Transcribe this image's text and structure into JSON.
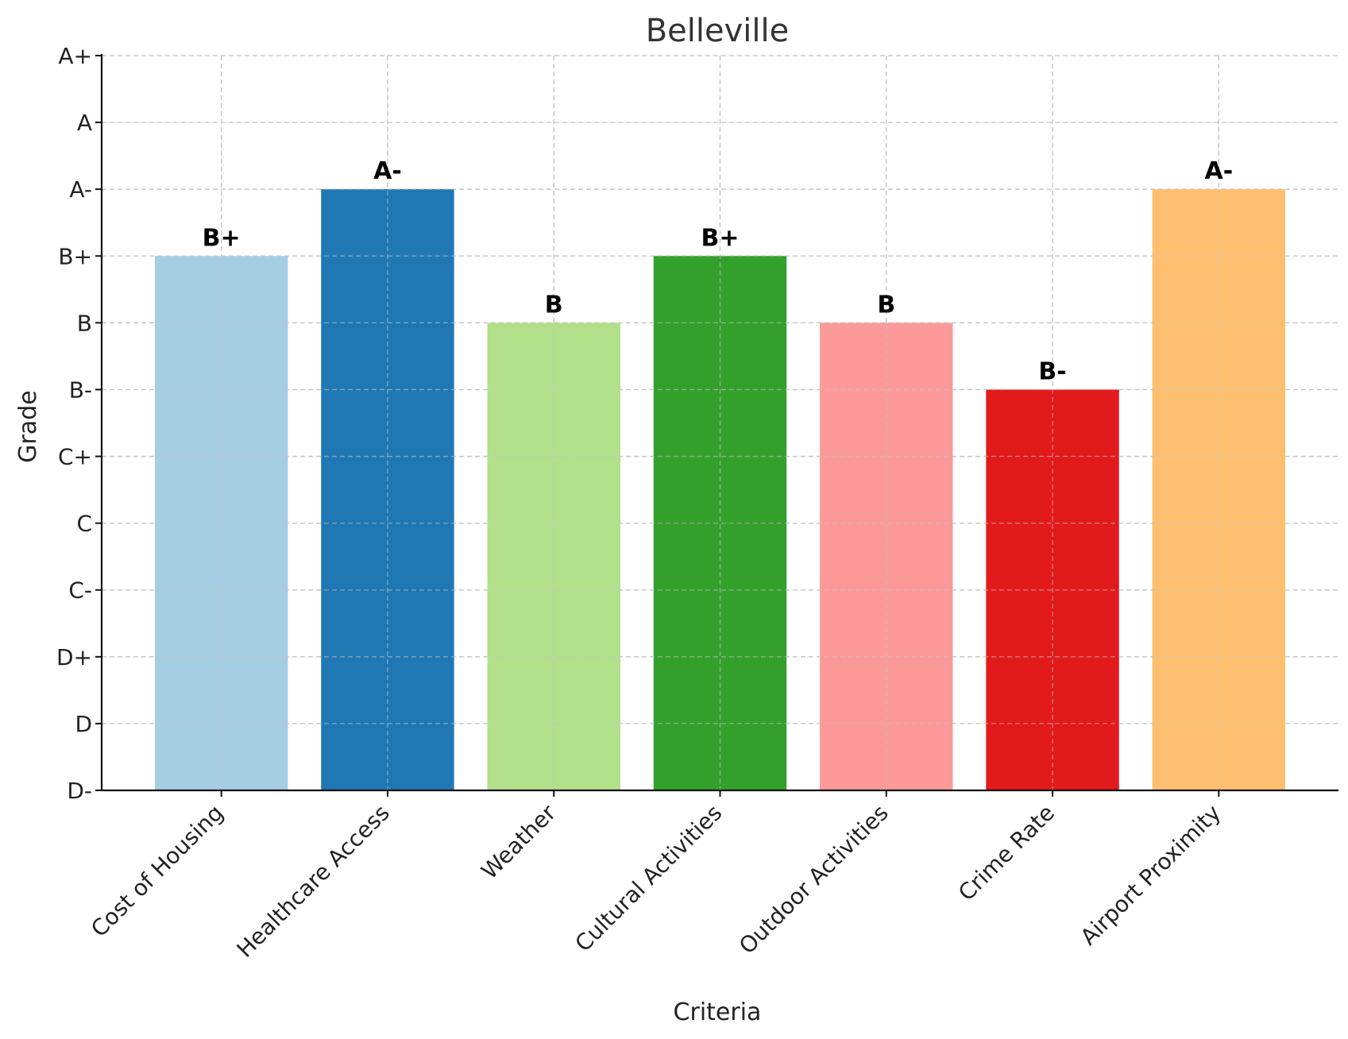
{
  "chart_data": {
    "type": "bar",
    "title": "Belleville",
    "xlabel": "Criteria",
    "ylabel": "Grade",
    "grade_scale": [
      "D-",
      "D",
      "D+",
      "C-",
      "C",
      "C+",
      "B-",
      "B",
      "B+",
      "A-",
      "A",
      "A+"
    ],
    "ylim": [
      0,
      11
    ],
    "grid": true,
    "categories": [
      "Cost of Housing",
      "Healthcare Access",
      "Weather",
      "Cultural Activities",
      "Outdoor Activities",
      "Crime Rate",
      "Airport Proximity"
    ],
    "values": [
      8,
      9,
      7,
      8,
      7,
      6,
      9
    ],
    "data_labels": [
      "B+",
      "A-",
      "B",
      "B+",
      "B",
      "B-",
      "A-"
    ],
    "colors": [
      "#a6cee3",
      "#1f78b4",
      "#b2df8a",
      "#33a02c",
      "#fb9a99",
      "#e31a1c",
      "#fdbf6f"
    ]
  }
}
